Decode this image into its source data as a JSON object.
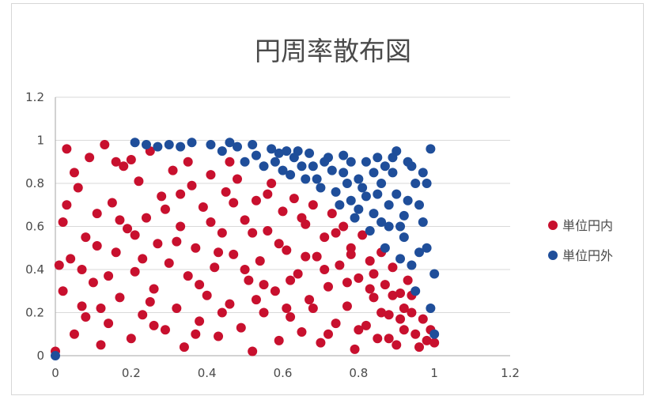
{
  "chart_data": {
    "type": "scatter",
    "title": "円周率散布図",
    "xlim": [
      0,
      1.2
    ],
    "ylim": [
      0,
      1.2
    ],
    "x_ticks": [
      "0",
      "0.2",
      "0.4",
      "0.6",
      "0.8",
      "1",
      "1.2"
    ],
    "y_ticks": [
      "0",
      "0.2",
      "0.4",
      "0.6",
      "0.8",
      "1",
      "1.2"
    ],
    "grid": "horizontal",
    "legend_position": "right",
    "series": [
      {
        "name": "単位円内",
        "color": "#c8102e",
        "points": [
          [
            0.0,
            0.02
          ],
          [
            0.01,
            0.42
          ],
          [
            0.02,
            0.62
          ],
          [
            0.03,
            0.96
          ],
          [
            0.04,
            0.45
          ],
          [
            0.05,
            0.1
          ],
          [
            0.06,
            0.78
          ],
          [
            0.07,
            0.23
          ],
          [
            0.08,
            0.55
          ],
          [
            0.09,
            0.92
          ],
          [
            0.1,
            0.34
          ],
          [
            0.11,
            0.66
          ],
          [
            0.12,
            0.05
          ],
          [
            0.13,
            0.98
          ],
          [
            0.14,
            0.15
          ],
          [
            0.15,
            0.71
          ],
          [
            0.16,
            0.48
          ],
          [
            0.17,
            0.27
          ],
          [
            0.18,
            0.88
          ],
          [
            0.19,
            0.59
          ],
          [
            0.2,
            0.08
          ],
          [
            0.21,
            0.39
          ],
          [
            0.22,
            0.81
          ],
          [
            0.23,
            0.19
          ],
          [
            0.24,
            0.64
          ],
          [
            0.25,
            0.95
          ],
          [
            0.26,
            0.31
          ],
          [
            0.27,
            0.52
          ],
          [
            0.28,
            0.74
          ],
          [
            0.29,
            0.12
          ],
          [
            0.3,
            0.43
          ],
          [
            0.31,
            0.86
          ],
          [
            0.32,
            0.22
          ],
          [
            0.33,
            0.6
          ],
          [
            0.34,
            0.04
          ],
          [
            0.35,
            0.37
          ],
          [
            0.36,
            0.79
          ],
          [
            0.37,
            0.5
          ],
          [
            0.38,
            0.16
          ],
          [
            0.39,
            0.69
          ],
          [
            0.4,
            0.28
          ],
          [
            0.41,
            0.84
          ],
          [
            0.42,
            0.41
          ],
          [
            0.43,
            0.09
          ],
          [
            0.44,
            0.57
          ],
          [
            0.45,
            0.76
          ],
          [
            0.46,
            0.24
          ],
          [
            0.47,
            0.47
          ],
          [
            0.48,
            0.82
          ],
          [
            0.49,
            0.13
          ],
          [
            0.5,
            0.63
          ],
          [
            0.51,
            0.35
          ],
          [
            0.52,
            0.02
          ],
          [
            0.53,
            0.72
          ],
          [
            0.54,
            0.44
          ],
          [
            0.55,
            0.2
          ],
          [
            0.56,
            0.58
          ],
          [
            0.57,
            0.8
          ],
          [
            0.58,
            0.3
          ],
          [
            0.59,
            0.07
          ],
          [
            0.6,
            0.67
          ],
          [
            0.61,
            0.49
          ],
          [
            0.62,
            0.18
          ],
          [
            0.63,
            0.73
          ],
          [
            0.64,
            0.38
          ],
          [
            0.65,
            0.11
          ],
          [
            0.66,
            0.61
          ],
          [
            0.67,
            0.26
          ],
          [
            0.68,
            0.7
          ],
          [
            0.69,
            0.46
          ],
          [
            0.7,
            0.06
          ],
          [
            0.71,
            0.55
          ],
          [
            0.72,
            0.32
          ],
          [
            0.73,
            0.66
          ],
          [
            0.74,
            0.15
          ],
          [
            0.75,
            0.42
          ],
          [
            0.76,
            0.6
          ],
          [
            0.77,
            0.23
          ],
          [
            0.78,
            0.5
          ],
          [
            0.79,
            0.03
          ],
          [
            0.8,
            0.36
          ],
          [
            0.81,
            0.56
          ],
          [
            0.82,
            0.14
          ],
          [
            0.83,
            0.44
          ],
          [
            0.84,
            0.27
          ],
          [
            0.85,
            0.08
          ],
          [
            0.86,
            0.48
          ],
          [
            0.87,
            0.33
          ],
          [
            0.88,
            0.19
          ],
          [
            0.89,
            0.41
          ],
          [
            0.9,
            0.05
          ],
          [
            0.91,
            0.29
          ],
          [
            0.92,
            0.12
          ],
          [
            0.93,
            0.35
          ],
          [
            0.94,
            0.2
          ],
          [
            0.95,
            0.1
          ],
          [
            0.97,
            0.17
          ],
          [
            0.98,
            0.07
          ],
          [
            0.99,
            0.12
          ],
          [
            1.0,
            0.06
          ],
          [
            0.02,
            0.3
          ],
          [
            0.05,
            0.85
          ],
          [
            0.08,
            0.18
          ],
          [
            0.11,
            0.51
          ],
          [
            0.14,
            0.37
          ],
          [
            0.17,
            0.63
          ],
          [
            0.2,
            0.91
          ],
          [
            0.23,
            0.45
          ],
          [
            0.26,
            0.14
          ],
          [
            0.29,
            0.68
          ],
          [
            0.32,
            0.53
          ],
          [
            0.35,
            0.9
          ],
          [
            0.38,
            0.33
          ],
          [
            0.41,
            0.62
          ],
          [
            0.44,
            0.2
          ],
          [
            0.47,
            0.71
          ],
          [
            0.5,
            0.4
          ],
          [
            0.53,
            0.26
          ],
          [
            0.56,
            0.75
          ],
          [
            0.59,
            0.52
          ],
          [
            0.62,
            0.35
          ],
          [
            0.65,
            0.64
          ],
          [
            0.68,
            0.22
          ],
          [
            0.71,
            0.4
          ],
          [
            0.74,
            0.57
          ],
          [
            0.77,
            0.34
          ],
          [
            0.8,
            0.12
          ],
          [
            0.83,
            0.31
          ],
          [
            0.86,
            0.2
          ],
          [
            0.89,
            0.28
          ],
          [
            0.92,
            0.22
          ],
          [
            0.96,
            0.04
          ],
          [
            0.03,
            0.7
          ],
          [
            0.07,
            0.4
          ],
          [
            0.12,
            0.22
          ],
          [
            0.16,
            0.9
          ],
          [
            0.21,
            0.56
          ],
          [
            0.25,
            0.25
          ],
          [
            0.33,
            0.75
          ],
          [
            0.37,
            0.1
          ],
          [
            0.43,
            0.48
          ],
          [
            0.46,
            0.9
          ],
          [
            0.52,
            0.57
          ],
          [
            0.55,
            0.33
          ],
          [
            0.61,
            0.22
          ],
          [
            0.66,
            0.46
          ],
          [
            0.72,
            0.1
          ],
          [
            0.78,
            0.47
          ],
          [
            0.84,
            0.38
          ],
          [
            0.88,
            0.08
          ],
          [
            0.91,
            0.17
          ],
          [
            0.94,
            0.28
          ]
        ]
      },
      {
        "name": "単位円外",
        "color": "#1f4e9a",
        "points": [
          [
            0.0,
            0.0
          ],
          [
            0.21,
            0.99
          ],
          [
            0.24,
            0.98
          ],
          [
            0.27,
            0.97
          ],
          [
            0.3,
            0.98
          ],
          [
            0.33,
            0.97
          ],
          [
            0.36,
            0.99
          ],
          [
            0.41,
            0.98
          ],
          [
            0.44,
            0.95
          ],
          [
            0.48,
            0.97
          ],
          [
            0.5,
            0.9
          ],
          [
            0.53,
            0.93
          ],
          [
            0.55,
            0.88
          ],
          [
            0.58,
            0.9
          ],
          [
            0.6,
            0.86
          ],
          [
            0.62,
            0.84
          ],
          [
            0.64,
            0.95
          ],
          [
            0.66,
            0.82
          ],
          [
            0.68,
            0.88
          ],
          [
            0.7,
            0.78
          ],
          [
            0.72,
            0.92
          ],
          [
            0.74,
            0.76
          ],
          [
            0.76,
            0.85
          ],
          [
            0.78,
            0.72
          ],
          [
            0.8,
            0.68
          ],
          [
            0.82,
            0.9
          ],
          [
            0.84,
            0.66
          ],
          [
            0.86,
            0.8
          ],
          [
            0.88,
            0.6
          ],
          [
            0.9,
            0.95
          ],
          [
            0.92,
            0.55
          ],
          [
            0.94,
            0.88
          ],
          [
            0.96,
            0.48
          ],
          [
            0.98,
            0.8
          ],
          [
            1.0,
            0.38
          ],
          [
            0.99,
            0.96
          ],
          [
            0.97,
            0.62
          ],
          [
            0.95,
            0.3
          ],
          [
            0.93,
            0.72
          ],
          [
            0.91,
            0.45
          ],
          [
            0.89,
            0.85
          ],
          [
            0.87,
            0.5
          ],
          [
            0.85,
            0.75
          ],
          [
            0.83,
            0.58
          ],
          [
            0.81,
            0.78
          ],
          [
            0.79,
            0.64
          ],
          [
            0.77,
            0.8
          ],
          [
            0.75,
            0.7
          ],
          [
            0.73,
            0.86
          ],
          [
            0.71,
            0.9
          ],
          [
            0.69,
            0.82
          ],
          [
            0.67,
            0.94
          ],
          [
            0.65,
            0.88
          ],
          [
            0.63,
            0.92
          ],
          [
            0.61,
            0.95
          ],
          [
            0.59,
            0.94
          ],
          [
            0.57,
            0.96
          ],
          [
            0.52,
            0.98
          ],
          [
            0.46,
            0.99
          ],
          [
            0.99,
            0.22
          ],
          [
            1.0,
            0.1
          ],
          [
            0.98,
            0.5
          ],
          [
            0.96,
            0.7
          ],
          [
            0.94,
            0.42
          ],
          [
            0.92,
            0.65
          ],
          [
            0.9,
            0.75
          ],
          [
            0.88,
            0.7
          ],
          [
            0.86,
            0.62
          ],
          [
            0.84,
            0.85
          ],
          [
            0.82,
            0.74
          ],
          [
            0.8,
            0.82
          ],
          [
            0.78,
            0.9
          ],
          [
            0.76,
            0.93
          ],
          [
            0.97,
            0.85
          ],
          [
            0.95,
            0.8
          ],
          [
            0.93,
            0.9
          ],
          [
            0.91,
            0.6
          ],
          [
            0.89,
            0.92
          ],
          [
            0.87,
            0.88
          ],
          [
            0.85,
            0.92
          ]
        ]
      }
    ]
  }
}
